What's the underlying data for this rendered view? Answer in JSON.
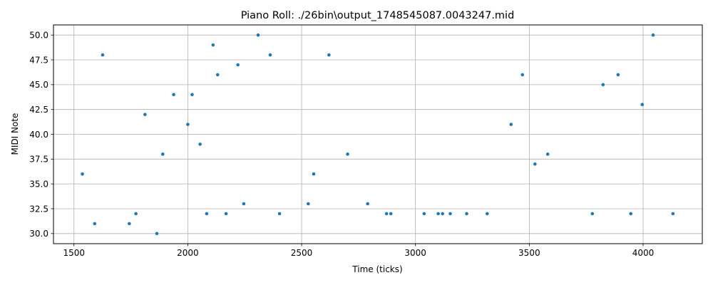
{
  "chart_data": {
    "type": "scatter",
    "title": "Piano Roll: ./26bin\\output_1748545087.0043247.mid",
    "xlabel": "Time (ticks)",
    "ylabel": "MIDI Note",
    "xlim": [
      1410,
      4260
    ],
    "ylim": [
      28.98,
      51.02
    ],
    "x_ticks": [
      1500,
      2000,
      2500,
      3000,
      3500,
      4000
    ],
    "x_tick_labels": [
      "1500",
      "2000",
      "2500",
      "3000",
      "3500",
      "4000"
    ],
    "y_ticks": [
      30.0,
      32.5,
      35.0,
      37.5,
      40.0,
      42.5,
      45.0,
      47.5,
      50.0
    ],
    "y_tick_labels": [
      "30.0",
      "32.5",
      "35.0",
      "37.5",
      "40.0",
      "42.5",
      "45.0",
      "47.5",
      "50.0"
    ],
    "grid": true,
    "marker_color": "#1f77b4",
    "points": [
      {
        "x": 1537,
        "y": 36
      },
      {
        "x": 1591,
        "y": 31
      },
      {
        "x": 1626,
        "y": 48
      },
      {
        "x": 1743,
        "y": 31
      },
      {
        "x": 1772,
        "y": 32
      },
      {
        "x": 1812,
        "y": 42
      },
      {
        "x": 1864,
        "y": 30
      },
      {
        "x": 1890,
        "y": 38
      },
      {
        "x": 1938,
        "y": 44
      },
      {
        "x": 2000,
        "y": 41
      },
      {
        "x": 2019,
        "y": 44
      },
      {
        "x": 2054,
        "y": 39
      },
      {
        "x": 2083,
        "y": 32
      },
      {
        "x": 2111,
        "y": 49
      },
      {
        "x": 2131,
        "y": 46
      },
      {
        "x": 2168,
        "y": 32
      },
      {
        "x": 2220,
        "y": 47
      },
      {
        "x": 2246,
        "y": 33
      },
      {
        "x": 2309,
        "y": 50
      },
      {
        "x": 2362,
        "y": 48
      },
      {
        "x": 2403,
        "y": 32
      },
      {
        "x": 2529,
        "y": 33
      },
      {
        "x": 2553,
        "y": 36
      },
      {
        "x": 2620,
        "y": 48
      },
      {
        "x": 2702,
        "y": 38
      },
      {
        "x": 2790,
        "y": 33
      },
      {
        "x": 2873,
        "y": 32
      },
      {
        "x": 2892,
        "y": 32
      },
      {
        "x": 3038,
        "y": 32
      },
      {
        "x": 3100,
        "y": 32
      },
      {
        "x": 3119,
        "y": 32
      },
      {
        "x": 3153,
        "y": 32
      },
      {
        "x": 3225,
        "y": 32
      },
      {
        "x": 3315,
        "y": 32
      },
      {
        "x": 3420,
        "y": 41
      },
      {
        "x": 3470,
        "y": 46
      },
      {
        "x": 3525,
        "y": 37
      },
      {
        "x": 3581,
        "y": 38
      },
      {
        "x": 3777,
        "y": 32
      },
      {
        "x": 3824,
        "y": 45
      },
      {
        "x": 3890,
        "y": 46
      },
      {
        "x": 3946,
        "y": 32
      },
      {
        "x": 3996,
        "y": 43
      },
      {
        "x": 4044,
        "y": 50
      },
      {
        "x": 4131,
        "y": 32
      }
    ]
  }
}
